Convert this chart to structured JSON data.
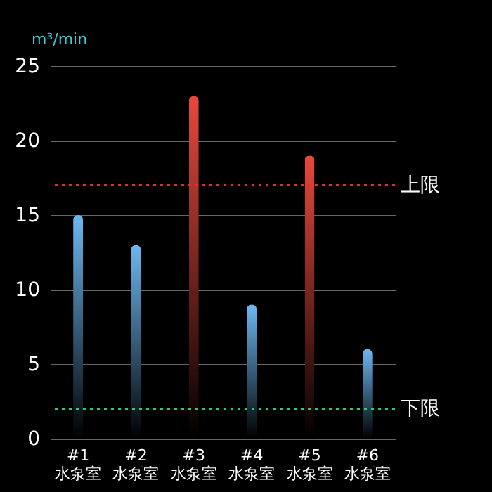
{
  "chart_data": {
    "type": "bar",
    "ylabel": "m³/min",
    "categories": [
      "#1 水泵室",
      "#2 水泵室",
      "#3 水泵室",
      "#4 水泵室",
      "#5 水泵室",
      "#6 水泵室"
    ],
    "values": [
      15,
      13,
      23,
      9,
      19,
      6
    ],
    "colors": [
      "#6cb8f2",
      "#6cb8f2",
      "#e8483c",
      "#6cb8f2",
      "#e8483c",
      "#6cb8f2"
    ],
    "ylim": [
      0,
      25
    ],
    "yticks": [
      0,
      5,
      10,
      15,
      20,
      25
    ],
    "grid": "y",
    "ref_lines": [
      {
        "axis": "y",
        "value": 17,
        "label": "上限",
        "color": "#e0302a",
        "line_style": "dotted"
      },
      {
        "axis": "y",
        "value": 2,
        "label": "下限",
        "color": "#2ad06a",
        "line_style": "dotted"
      }
    ]
  }
}
